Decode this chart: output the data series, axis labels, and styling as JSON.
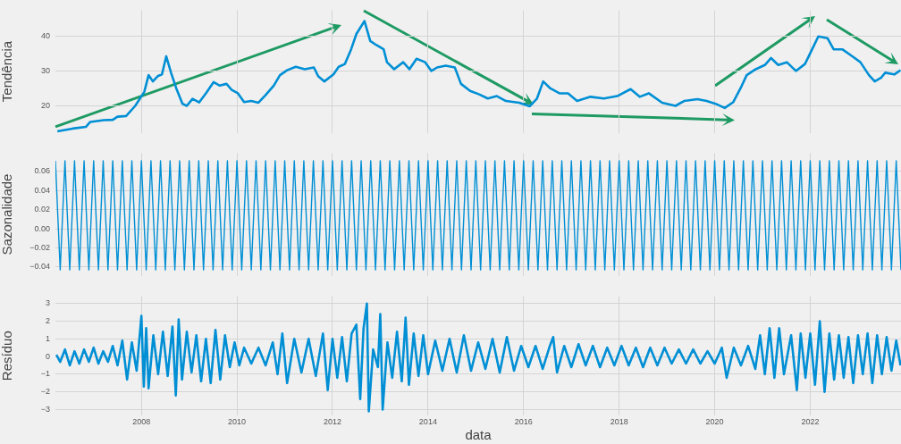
{
  "chart_data": [
    {
      "type": "line",
      "ylabel": "Tendência",
      "xlim": [
        2006.2,
        2023.9
      ],
      "xticks": [
        2008,
        2010,
        2012,
        2014,
        2016,
        2018,
        2020,
        2022
      ],
      "ylim": [
        12.3,
        47.4
      ],
      "yticks": [
        20,
        30,
        40
      ],
      "grid": true,
      "tick_labels": "y",
      "series": [
        {
          "color": "#008fd5",
          "x": [
            2006.24,
            2006.56,
            2006.84,
            2006.93,
            2007.21,
            2007.4,
            2007.5,
            2007.68,
            2007.87,
            2008.06,
            2008.15,
            2008.24,
            2008.34,
            2008.43,
            2008.52,
            2008.62,
            2008.73,
            2008.86,
            2008.95,
            2009.07,
            2009.21,
            2009.36,
            2009.51,
            2009.64,
            2009.78,
            2009.89,
            2010.02,
            2010.15,
            2010.3,
            2010.45,
            2010.6,
            2010.77,
            2010.9,
            2011.05,
            2011.23,
            2011.42,
            2011.61,
            2011.7,
            2011.83,
            2012.02,
            2012.13,
            2012.26,
            2012.39,
            2012.5,
            2012.67,
            2012.79,
            2012.92,
            2013.07,
            2013.14,
            2013.29,
            2013.48,
            2013.61,
            2013.76,
            2013.94,
            2014.07,
            2014.19,
            2014.37,
            2014.56,
            2014.69,
            2014.88,
            2015.07,
            2015.25,
            2015.44,
            2015.63,
            2015.91,
            2016.13,
            2016.28,
            2016.41,
            2016.56,
            2016.75,
            2016.93,
            2017.12,
            2017.4,
            2017.68,
            2017.96,
            2018.24,
            2018.43,
            2018.62,
            2018.9,
            2019.18,
            2019.36,
            2019.64,
            2019.83,
            2020.02,
            2020.21,
            2020.39,
            2020.54,
            2020.67,
            2020.86,
            2021.05,
            2021.18,
            2021.33,
            2021.51,
            2021.7,
            2021.89,
            2022.04,
            2022.17,
            2022.36,
            2022.49,
            2022.67,
            2022.86,
            2023.05,
            2023.23,
            2023.35,
            2023.48,
            2023.57,
            2023.76,
            2023.89
          ],
          "values": [
            12.7,
            13.5,
            14,
            15.4,
            15.9,
            16,
            16.9,
            17.1,
            20,
            24,
            28.8,
            27,
            28.5,
            29,
            34.2,
            29.5,
            25,
            20.6,
            20,
            22,
            21,
            23.8,
            26.8,
            25.8,
            26.3,
            24.6,
            23.6,
            21.1,
            21.4,
            20.9,
            23.1,
            25.8,
            28.8,
            30.2,
            31.2,
            30.5,
            31,
            28.5,
            27,
            29,
            31.2,
            32,
            36.2,
            40.6,
            44.3,
            38.6,
            37.4,
            36.2,
            32.5,
            30.5,
            32.5,
            30.5,
            33.5,
            32.5,
            30,
            31,
            31.5,
            31,
            26.3,
            24.3,
            23.3,
            22.1,
            22.8,
            21.4,
            20.9,
            19.9,
            22.1,
            27,
            25,
            23.6,
            23.6,
            21.4,
            22.6,
            22.1,
            22.8,
            24.8,
            22.6,
            23.6,
            20.9,
            20,
            21.4,
            21.9,
            21.4,
            20.6,
            19.4,
            21.1,
            25,
            28.8,
            30.5,
            31.7,
            33.7,
            31.7,
            32.5,
            30,
            32,
            36.2,
            39.9,
            39.4,
            36.2,
            36.2,
            34.4,
            32.5,
            28.8,
            27,
            28,
            29.5,
            29,
            30.2
          ]
        }
      ]
    },
    {
      "type": "line",
      "ylabel": "Sazonalidade",
      "xlim": [
        2006.2,
        2023.9
      ],
      "xticks": [
        2008,
        2010,
        2012,
        2014,
        2016,
        2018,
        2020,
        2022
      ],
      "ylim": [
        -0.049,
        0.079
      ],
      "yticks": [
        {
          "value": -0.04,
          "label": "−0.04"
        },
        {
          "value": -0.02,
          "label": "−0.02"
        },
        {
          "value": 0,
          "label": "0.00"
        },
        {
          "value": 0.02,
          "label": "0.02"
        },
        {
          "value": 0.04,
          "label": "0.04"
        },
        {
          "value": 0.06,
          "label": "0.06"
        }
      ],
      "grid": true,
      "tick_labels": "y",
      "series": [
        {
          "color": "#008fd5",
          "x": [
            2006.2,
            2006.3,
            2006.4,
            2006.5,
            2006.6,
            2006.7,
            2006.8,
            2006.9,
            2007.0,
            2007.1,
            2007.2,
            2007.3,
            2007.4,
            2007.5,
            2007.6,
            2007.7,
            2007.8,
            2007.9,
            2008.0,
            2008.1,
            2008.2,
            2008.3,
            2008.4,
            2008.5,
            2008.6,
            2008.7,
            2008.8,
            2008.9,
            2009.0,
            2009.1,
            2009.2,
            2009.3,
            2009.4,
            2009.5,
            2009.6,
            2009.7,
            2009.8,
            2009.9,
            2010.0,
            2010.1,
            2010.2,
            2010.3,
            2010.4,
            2010.5,
            2010.6,
            2010.7,
            2010.8,
            2010.9,
            2011.0,
            2011.1,
            2011.2,
            2011.3,
            2011.4,
            2011.5,
            2011.6,
            2011.7,
            2011.8,
            2011.9,
            2012.0,
            2012.1,
            2012.2,
            2012.3,
            2012.4,
            2012.5,
            2012.6,
            2012.7,
            2012.8,
            2012.9,
            2013.0,
            2013.1,
            2013.2,
            2013.3,
            2013.4,
            2013.5,
            2013.6,
            2013.7,
            2013.8,
            2013.9,
            2014.0,
            2014.1,
            2014.2,
            2014.3,
            2014.4,
            2014.5,
            2014.6,
            2014.7,
            2014.8,
            2014.9,
            2015.0,
            2015.1,
            2015.2,
            2015.3,
            2015.4,
            2015.5,
            2015.6,
            2015.7,
            2015.8,
            2015.9,
            2016.0,
            2016.1,
            2016.2,
            2016.3,
            2016.4,
            2016.5,
            2016.6,
            2016.7,
            2016.8,
            2016.9,
            2017.0,
            2017.1,
            2017.2,
            2017.3,
            2017.4,
            2017.5,
            2017.6,
            2017.7,
            2017.8,
            2017.9,
            2018.0,
            2018.1,
            2018.2,
            2018.3,
            2018.4,
            2018.5,
            2018.6,
            2018.7,
            2018.8,
            2018.9,
            2019.0,
            2019.1,
            2019.2,
            2019.3,
            2019.4,
            2019.5,
            2019.6,
            2019.7,
            2019.8,
            2019.9,
            2020.0,
            2020.1,
            2020.2,
            2020.3,
            2020.4,
            2020.5,
            2020.6,
            2020.7,
            2020.8,
            2020.9,
            2021.0,
            2021.1,
            2021.2,
            2021.3,
            2021.4,
            2021.5,
            2021.6,
            2021.7,
            2021.8,
            2021.9,
            2022.0,
            2022.1,
            2022.2,
            2022.3,
            2022.4,
            2022.5,
            2022.6,
            2022.7,
            2022.8,
            2022.9,
            2023.0,
            2023.1,
            2023.2,
            2023.3,
            2023.4,
            2023.5,
            2023.6,
            2023.7,
            2023.8,
            2023.9
          ],
          "values": [
            0.071,
            -0.043,
            0.071,
            -0.043,
            0.071,
            -0.043,
            0.071,
            -0.043,
            0.071,
            -0.043,
            0.071,
            -0.043,
            0.071,
            -0.043,
            0.071,
            -0.043,
            0.071,
            -0.043,
            0.071,
            -0.043,
            0.071,
            -0.043,
            0.071,
            -0.043,
            0.071,
            -0.043,
            0.071,
            -0.043,
            0.071,
            -0.043,
            0.071,
            -0.043,
            0.071,
            -0.043,
            0.071,
            -0.043,
            0.071,
            -0.043,
            0.071,
            -0.043,
            0.071,
            -0.043,
            0.071,
            -0.043,
            0.071,
            -0.043,
            0.071,
            -0.043,
            0.071,
            -0.043,
            0.071,
            -0.043,
            0.071,
            -0.043,
            0.071,
            -0.043,
            0.071,
            -0.043,
            0.071,
            -0.043,
            0.071,
            -0.043,
            0.071,
            -0.043,
            0.071,
            -0.043,
            0.071,
            -0.043,
            0.071,
            -0.043,
            0.071,
            -0.043,
            0.071,
            -0.043,
            0.071,
            -0.043,
            0.071,
            -0.043,
            0.071,
            -0.043,
            0.071,
            -0.043,
            0.071,
            -0.043,
            0.071,
            -0.043,
            0.071,
            -0.043,
            0.071,
            -0.043,
            0.071,
            -0.043,
            0.071,
            -0.043,
            0.071,
            -0.043,
            0.071,
            -0.043,
            0.071,
            -0.043,
            0.071,
            -0.043,
            0.071,
            -0.043,
            0.071,
            -0.043,
            0.071,
            -0.043,
            0.071,
            -0.043,
            0.071,
            -0.043,
            0.071,
            -0.043,
            0.071,
            -0.043,
            0.071,
            -0.043,
            0.071,
            -0.043,
            0.071,
            -0.043,
            0.071,
            -0.043,
            0.071,
            -0.043,
            0.071,
            -0.043,
            0.071,
            -0.043,
            0.071,
            -0.043,
            0.071,
            -0.043,
            0.071,
            -0.043,
            0.071,
            -0.043,
            0.071,
            -0.043,
            0.071,
            -0.043,
            0.071,
            -0.043,
            0.071,
            -0.043,
            0.071,
            -0.043,
            0.071,
            -0.043,
            0.071,
            -0.043,
            0.071,
            -0.043,
            0.071,
            -0.043,
            0.071,
            -0.043,
            0.071,
            -0.043,
            0.071,
            -0.043,
            0.071,
            -0.043,
            0.071,
            -0.043,
            0.071,
            -0.043,
            0.071,
            -0.043,
            0.071,
            -0.043,
            0.071,
            -0.043,
            0.071,
            -0.043,
            0.071,
            -0.043
          ]
        }
      ]
    },
    {
      "type": "line",
      "ylabel": "Resíduo",
      "xlabel": "data",
      "xlim": [
        2006.2,
        2023.9
      ],
      "xticks": [
        2008,
        2010,
        2012,
        2014,
        2016,
        2018,
        2020,
        2022
      ],
      "ylim": [
        -3.33,
        3.42
      ],
      "yticks": [
        {
          "value": -3,
          "label": "−3"
        },
        {
          "value": -2,
          "label": "−2"
        },
        {
          "value": -1,
          "label": "−1"
        },
        0,
        1,
        2,
        3
      ],
      "grid": true,
      "series": [
        {
          "color": "#008fd5",
          "x": [
            2006.22,
            2006.3,
            2006.4,
            2006.5,
            2006.6,
            2006.7,
            2006.8,
            2006.9,
            2007.0,
            2007.1,
            2007.2,
            2007.3,
            2007.4,
            2007.5,
            2007.6,
            2007.7,
            2007.8,
            2007.9,
            2008.0,
            2008.05,
            2008.1,
            2008.15,
            2008.25,
            2008.35,
            2008.45,
            2008.55,
            2008.65,
            2008.72,
            2008.78,
            2008.85,
            2008.95,
            2009.05,
            2009.15,
            2009.25,
            2009.35,
            2009.45,
            2009.55,
            2009.65,
            2009.75,
            2009.85,
            2009.95,
            2010.05,
            2010.15,
            2010.3,
            2010.45,
            2010.6,
            2010.75,
            2010.85,
            2010.95,
            2011.05,
            2011.2,
            2011.35,
            2011.5,
            2011.65,
            2011.8,
            2011.9,
            2012.0,
            2012.1,
            2012.2,
            2012.3,
            2012.4,
            2012.5,
            2012.58,
            2012.65,
            2012.72,
            2012.76,
            2012.85,
            2012.95,
            2013.0,
            2013.05,
            2013.15,
            2013.25,
            2013.35,
            2013.45,
            2013.53,
            2013.6,
            2013.7,
            2013.8,
            2013.9,
            2014.0,
            2014.15,
            2014.3,
            2014.45,
            2014.6,
            2014.75,
            2014.9,
            2015.05,
            2015.2,
            2015.35,
            2015.5,
            2015.65,
            2015.8,
            2015.95,
            2016.1,
            2016.25,
            2016.4,
            2016.55,
            2016.62,
            2016.7,
            2016.85,
            2017.0,
            2017.15,
            2017.3,
            2017.45,
            2017.6,
            2017.75,
            2017.9,
            2018.05,
            2018.2,
            2018.35,
            2018.5,
            2018.65,
            2018.8,
            2018.95,
            2019.1,
            2019.25,
            2019.4,
            2019.55,
            2019.7,
            2019.85,
            2020.0,
            2020.15,
            2020.25,
            2020.4,
            2020.55,
            2020.7,
            2020.85,
            2020.95,
            2021.05,
            2021.15,
            2021.25,
            2021.35,
            2021.45,
            2021.6,
            2021.72,
            2021.8,
            2021.9,
            2022.0,
            2022.1,
            2022.2,
            2022.3,
            2022.4,
            2022.5,
            2022.6,
            2022.7,
            2022.8,
            2022.9,
            2023.0,
            2023.1,
            2023.2,
            2023.3,
            2023.4,
            2023.5,
            2023.6,
            2023.7,
            2023.8,
            2023.89
          ],
          "values": [
            0.1,
            -0.3,
            0.4,
            -0.5,
            0.3,
            -0.4,
            0.4,
            -0.3,
            0.5,
            -0.4,
            0.3,
            -0.3,
            0.6,
            -0.5,
            0.9,
            -1.3,
            0.8,
            -0.8,
            2.3,
            -1.7,
            1.6,
            -1.8,
            1.2,
            -1.0,
            1.4,
            -1.1,
            1.7,
            -2.2,
            2.1,
            -1.3,
            1.4,
            -0.9,
            1.2,
            -1.4,
            1.0,
            -1.5,
            1.5,
            -1.3,
            1.2,
            -0.6,
            0.8,
            -0.5,
            0.5,
            -0.4,
            0.5,
            -0.5,
            0.8,
            -1.0,
            1.3,
            -1.5,
            1.0,
            -0.9,
            1.0,
            -1.1,
            1.3,
            -1.9,
            1.0,
            -1.2,
            1.1,
            -1.4,
            1.3,
            1.8,
            -2.4,
            1.6,
            3.0,
            -3.1,
            0.4,
            -0.6,
            2.4,
            -3.0,
            0.8,
            -1.2,
            1.4,
            -1.4,
            2.2,
            -1.6,
            1.3,
            -1.1,
            1.2,
            -1.0,
            0.9,
            -0.8,
            1.0,
            -0.9,
            1.2,
            -0.8,
            0.8,
            -0.7,
            1.0,
            -0.9,
            1.1,
            -0.8,
            0.6,
            -0.6,
            0.6,
            -0.7,
            0.6,
            1.1,
            -0.9,
            0.6,
            -0.6,
            0.7,
            -0.5,
            0.6,
            -0.6,
            0.5,
            -0.5,
            0.6,
            -0.5,
            0.5,
            -0.6,
            0.5,
            -0.5,
            0.5,
            -0.4,
            0.4,
            -0.4,
            0.4,
            -0.4,
            0.3,
            -0.4,
            0.5,
            -1.2,
            0.5,
            -0.5,
            0.6,
            -0.7,
            1.2,
            -1.0,
            1.6,
            -1.2,
            1.6,
            -1.0,
            1.2,
            -1.9,
            1.3,
            -1.2,
            1.3,
            -1.6,
            2.0,
            -2.0,
            1.3,
            -1.3,
            1.2,
            -1.2,
            1.1,
            -1.5,
            1.2,
            -1.0,
            1.3,
            -1.5,
            1.2,
            -1.0,
            1.1,
            -0.8,
            0.9,
            -0.5
          ]
        }
      ]
    }
  ]
}
